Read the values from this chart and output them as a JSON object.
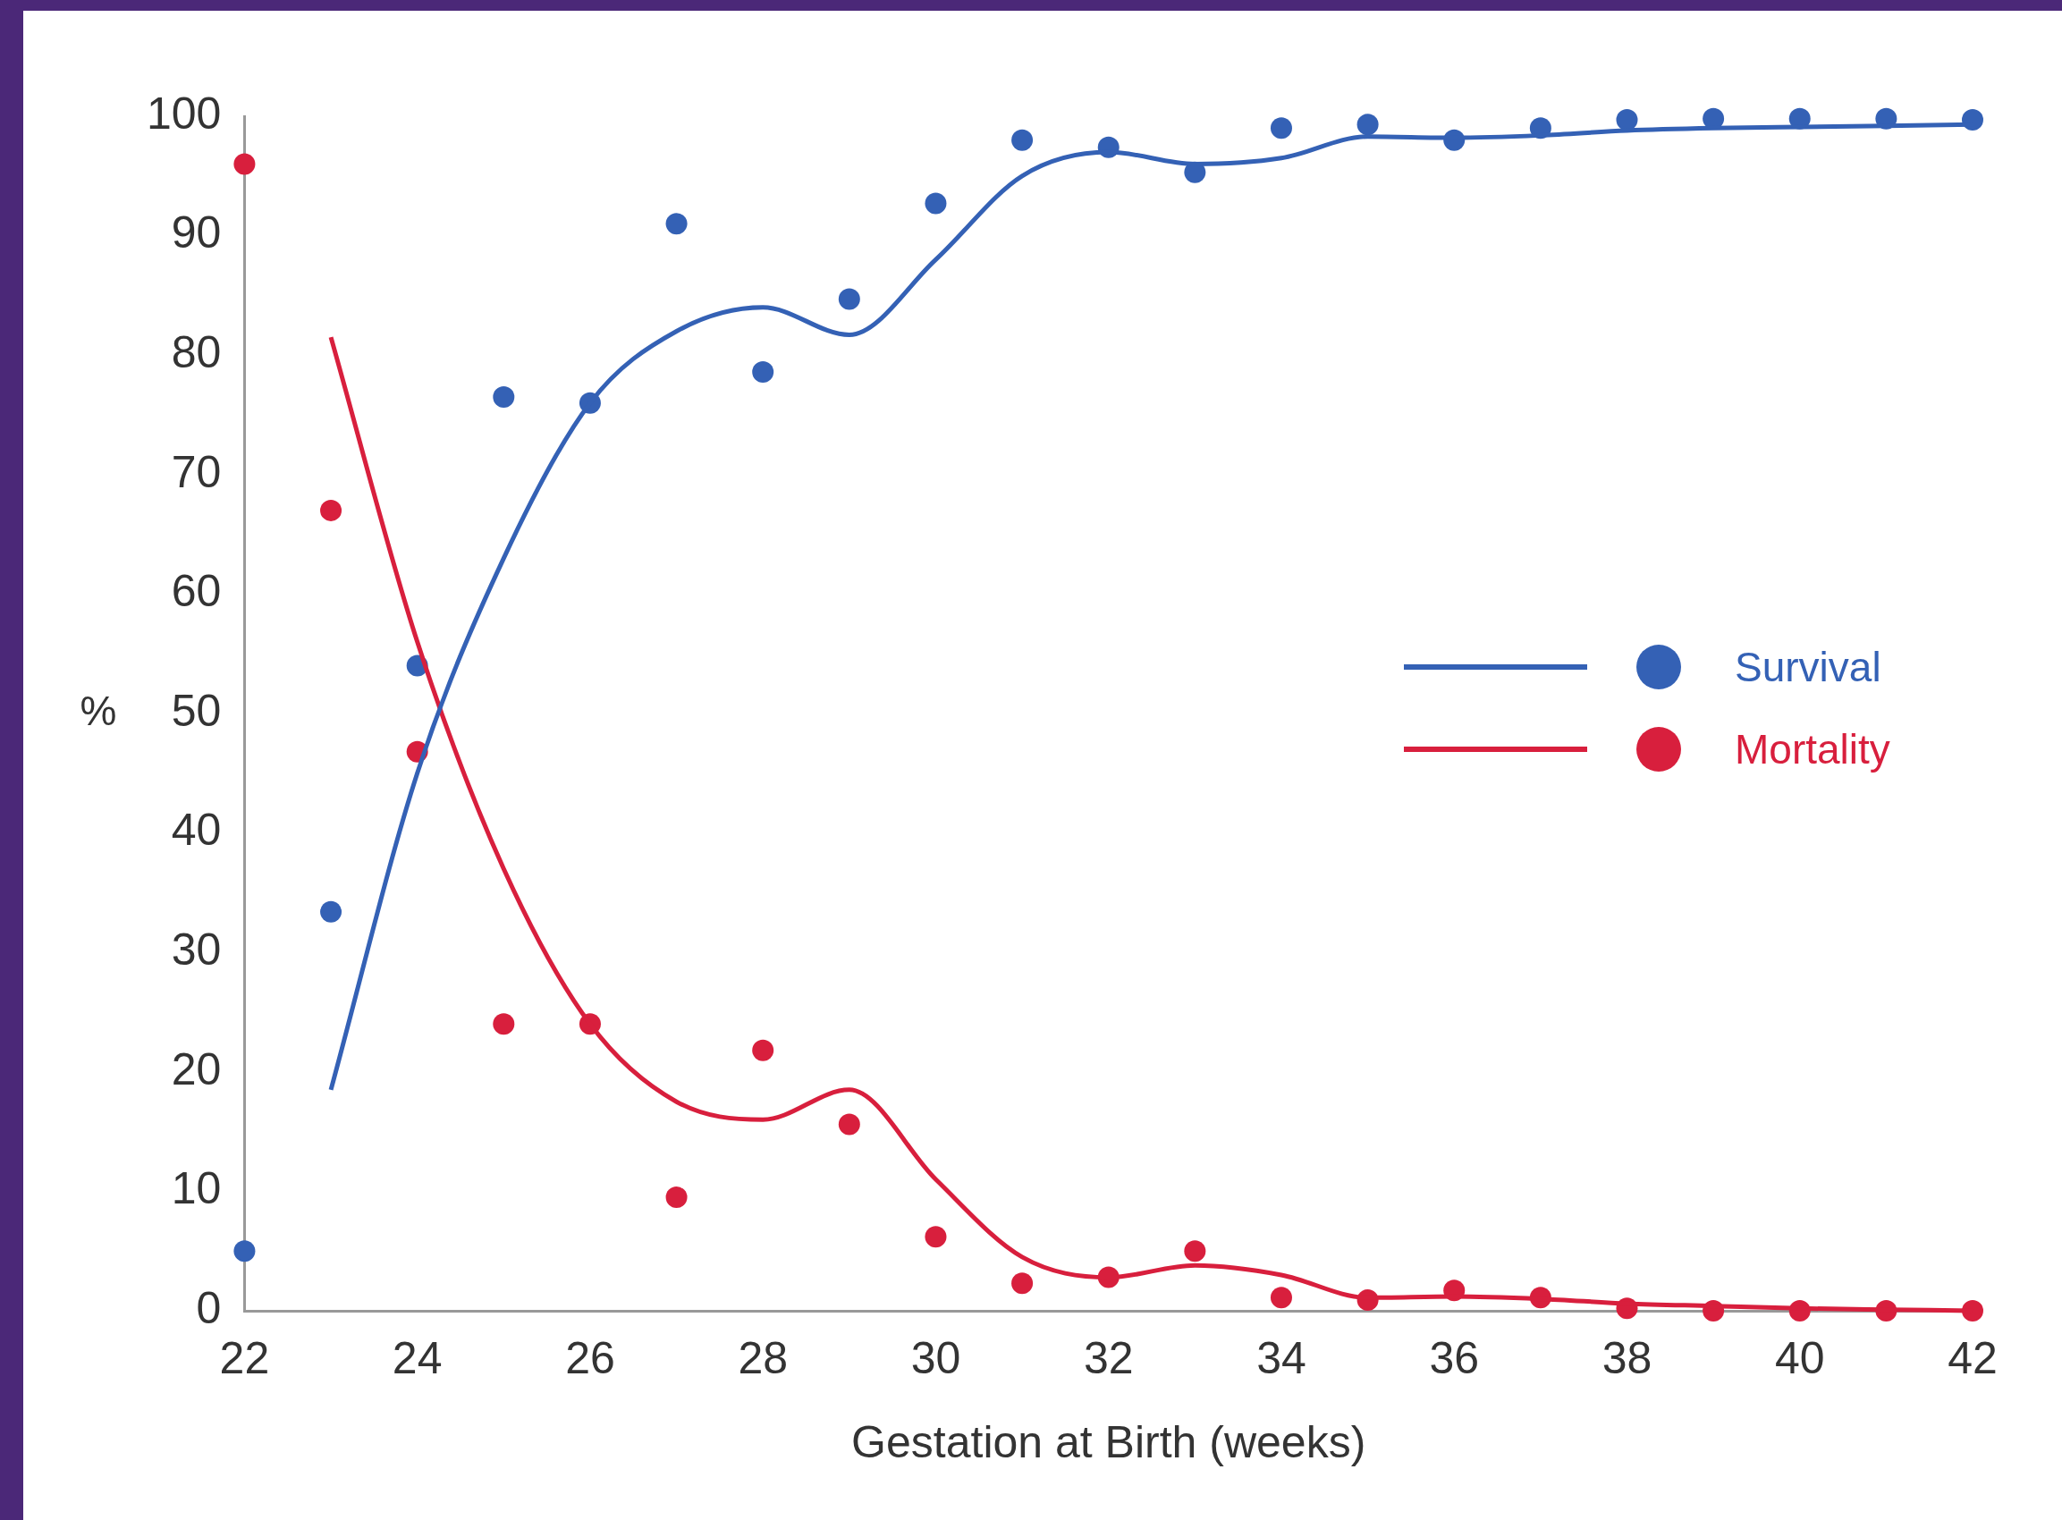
{
  "chart_data": {
    "type": "scatter",
    "xlabel": "Gestation at Birth (weeks)",
    "ylabel": "%",
    "xlim": [
      22,
      42
    ],
    "xticks": [
      22,
      24,
      26,
      28,
      30,
      32,
      34,
      36,
      38,
      40,
      42
    ],
    "ylim": [
      0,
      100
    ],
    "yticks": [
      0,
      10,
      20,
      30,
      40,
      50,
      60,
      70,
      80,
      90,
      100
    ],
    "grid": false,
    "legend": "right",
    "series": [
      {
        "type": "line",
        "marker": "none",
        "color": "#3461b5",
        "x": [
          23,
          24,
          25,
          26,
          27,
          28,
          29,
          30,
          31,
          32,
          33,
          34,
          35,
          36,
          37,
          38,
          39,
          40,
          41,
          42
        ],
        "values": [
          18.5,
          45,
          63,
          76,
          82,
          84,
          81.7,
          88,
          95,
          97,
          96,
          96.5,
          98.3,
          98.2,
          98.4,
          98.8,
          99,
          99.1,
          99.2,
          99.3
        ]
      },
      {
        "type": "line",
        "marker": "none",
        "color": "#d81f3d",
        "x": [
          23,
          24,
          25,
          26,
          27,
          28,
          29,
          30,
          31,
          32,
          33,
          34,
          35,
          36,
          37,
          38,
          39,
          40,
          41,
          42
        ],
        "values": [
          81.5,
          56,
          37,
          24,
          17.5,
          16,
          18.5,
          11,
          4.5,
          2.8,
          3.8,
          3,
          1.1,
          1.2,
          1,
          0.6,
          0.4,
          0.2,
          0.1,
          0
        ]
      },
      {
        "name": "Survival",
        "type": "scatter",
        "marker": "circle",
        "color": "#3461b5",
        "x": [
          22,
          23,
          24,
          25,
          26,
          27,
          28,
          29,
          30,
          31,
          32,
          33,
          34,
          35,
          36,
          37,
          38,
          39,
          40,
          41,
          42
        ],
        "values": [
          5,
          33.4,
          54,
          76.5,
          76,
          91,
          78.6,
          84.7,
          92.7,
          98,
          97.4,
          95.3,
          99,
          99.3,
          98,
          99,
          99.7,
          99.8,
          99.8,
          99.8,
          99.7
        ]
      },
      {
        "name": "Mortality",
        "type": "scatter",
        "marker": "circle",
        "color": "#d81f3d",
        "x": [
          22,
          23,
          24,
          25,
          26,
          27,
          28,
          29,
          30,
          31,
          32,
          33,
          34,
          35,
          36,
          37,
          38,
          39,
          40,
          41,
          42
        ],
        "values": [
          96,
          67,
          46.8,
          24,
          24,
          9.5,
          21.8,
          15.6,
          6.2,
          2.3,
          2.8,
          5,
          1.1,
          0.9,
          1.7,
          1.1,
          0.2,
          0,
          0,
          0,
          0
        ]
      }
    ]
  }
}
